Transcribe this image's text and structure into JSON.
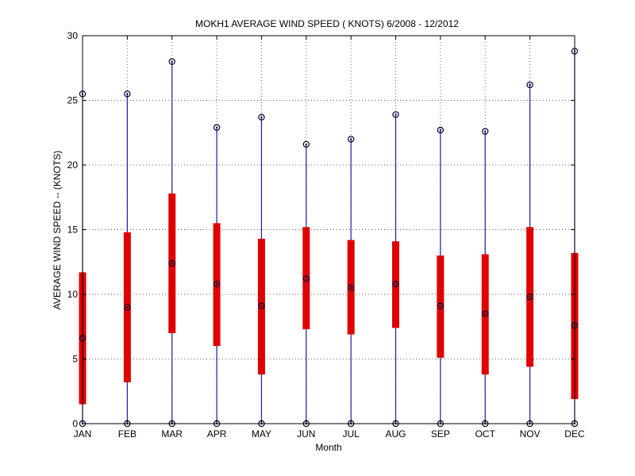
{
  "chart_data": {
    "type": "box",
    "title": "MOKH1  AVERAGE WIND SPEED ( KNOTS) 6/2008 - 12/2012",
    "xlabel": "Month",
    "ylabel": "AVERAGE WIND SPEED -- (KNOTS)",
    "ylim": [
      0,
      30
    ],
    "yticks": [
      0,
      5,
      10,
      15,
      20,
      25,
      30
    ],
    "grid": true,
    "categories": [
      "JAN",
      "FEB",
      "MAR",
      "APR",
      "MAY",
      "JUN",
      "JUL",
      "AUG",
      "SEP",
      "OCT",
      "NOV",
      "DEC"
    ],
    "min": [
      0,
      0,
      0,
      0,
      0,
      0,
      0,
      0,
      0,
      0,
      0,
      0
    ],
    "q1": [
      1.5,
      3.2,
      7.0,
      6.0,
      3.8,
      7.3,
      6.9,
      7.4,
      5.1,
      3.8,
      4.4,
      1.9
    ],
    "median": [
      6.6,
      9.0,
      12.4,
      10.8,
      9.1,
      11.2,
      10.5,
      10.8,
      9.1,
      8.5,
      9.8,
      7.6
    ],
    "q3": [
      11.7,
      14.8,
      17.8,
      15.5,
      14.3,
      15.2,
      14.2,
      14.1,
      13.0,
      13.1,
      15.2,
      13.2
    ],
    "max": [
      25.5,
      25.5,
      28.0,
      22.9,
      23.7,
      21.6,
      22.0,
      23.9,
      22.7,
      22.6,
      26.2,
      28.8
    ],
    "colors": {
      "whisker": "#1f1f9a",
      "box": "#e00000",
      "marker": "#000033"
    }
  }
}
